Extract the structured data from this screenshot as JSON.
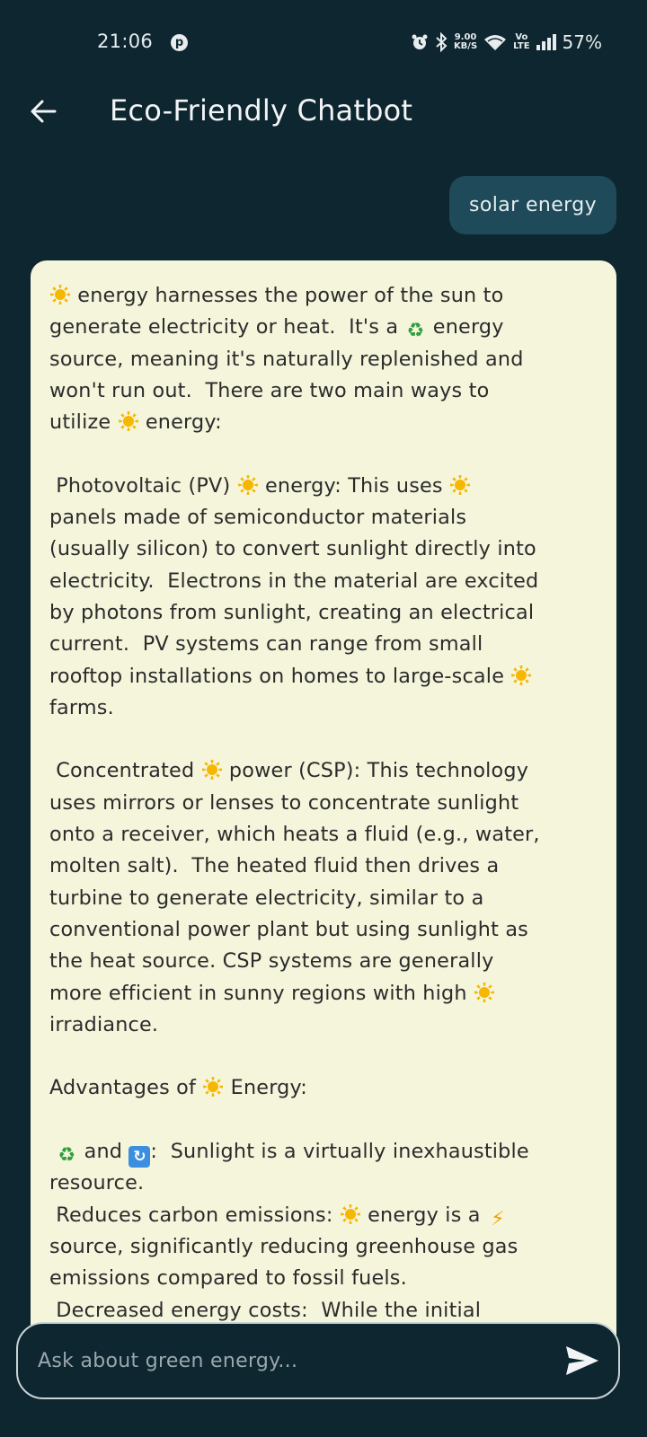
{
  "status_bar": {
    "time": "21:06",
    "net_speed_top": "9.00",
    "net_speed_bottom": "KB/S",
    "volte_top": "Vo",
    "volte_bottom": "LTE",
    "battery": "57%"
  },
  "app_bar": {
    "title": "Eco-Friendly Chatbot"
  },
  "user_message": "solar energy",
  "bot_message": {
    "lines": [
      {
        "t": "[sun] energy harnesses the power of the sun to"
      },
      {
        "t": "generate electricity or heat.  It's a [recycle] energy"
      },
      {
        "t": "source, meaning it's naturally replenished and"
      },
      {
        "t": "won't run out.  There are two main ways to"
      },
      {
        "t": "utilize [sun] energy:"
      },
      {
        "t": ""
      },
      {
        "t": " Photovoltaic (PV) [sun] energy: This uses [sun]"
      },
      {
        "t": "panels made of semiconductor materials"
      },
      {
        "t": "(usually silicon) to convert sunlight directly into"
      },
      {
        "t": "electricity.  Electrons in the material are excited"
      },
      {
        "t": "by photons from sunlight, creating an electrical"
      },
      {
        "t": "current.  PV systems can range from small"
      },
      {
        "t": "rooftop installations on homes to large-scale [sun]"
      },
      {
        "t": "farms."
      },
      {
        "t": ""
      },
      {
        "t": " Concentrated [sun] power (CSP): This technology"
      },
      {
        "t": "uses mirrors or lenses to concentrate sunlight"
      },
      {
        "t": "onto a receiver, which heats a fluid (e.g., water,"
      },
      {
        "t": "molten salt).  The heated fluid then drives a"
      },
      {
        "t": "turbine to generate electricity, similar to a"
      },
      {
        "t": "conventional power plant but using sunlight as"
      },
      {
        "t": "the heat source. CSP systems are generally"
      },
      {
        "t": "more efficient in sunny regions with high [sun]"
      },
      {
        "t": "irradiance."
      },
      {
        "t": ""
      },
      {
        "t": "Advantages of [sun] Energy:"
      },
      {
        "t": ""
      },
      {
        "t": " [recycle] and [repeat]:  Sunlight is a virtually inexhaustible"
      },
      {
        "t": "resource."
      },
      {
        "t": " Reduces carbon emissions: [sun] energy is a [bolt]"
      },
      {
        "t": "source, significantly reducing greenhouse gas"
      },
      {
        "t": "emissions compared to fossil fuels."
      },
      {
        "t": " Decreased energy costs:  While the initial"
      }
    ]
  },
  "input": {
    "placeholder": "Ask about green energy..."
  },
  "icons": {
    "back": "arrow-left-icon",
    "send": "send-icon",
    "sun": "sun-emoji-icon",
    "recycle": "recycle-emoji-icon",
    "repeat": "repeat-emoji-icon",
    "bolt": "lightning-emoji-icon"
  },
  "colors": {
    "background": "#0d2630",
    "user_bubble": "#1f4a59",
    "bot_bubble": "#f5f5dc"
  }
}
